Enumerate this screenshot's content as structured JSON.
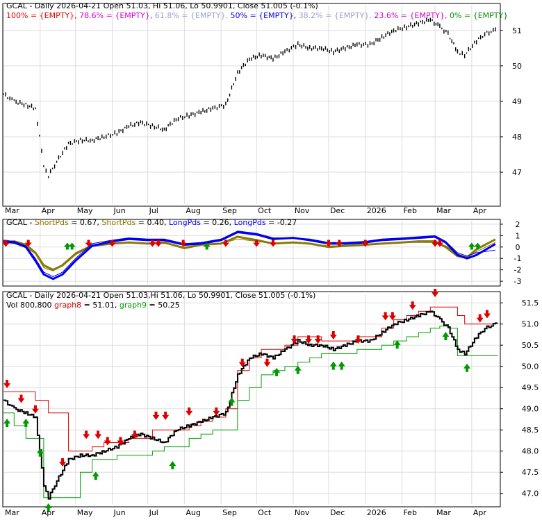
{
  "colors": {
    "fib_100": "#e00000",
    "fib_786": "#d000d0",
    "fib_618": "#9aa0c8",
    "fib_50": "#0000e0",
    "fib_382": "#9aa0c8",
    "fib_236": "#d000d0",
    "fib_0": "#009000",
    "short": "#8a7a00",
    "long": "#0000ee",
    "stop_upper": "#e00000",
    "stop_lower": "#00a000",
    "arrow_down": "#dd0000",
    "arrow_up": "#009900",
    "price": "#000000",
    "grid": "#dddddd"
  },
  "panel1": {
    "title": "GCAL - Daily 2026-04-21 Open 51.03, Hi 51.06, Lo 50.9901, Close 51.005 (-0.1%)",
    "fib": [
      {
        "label": "100% = {EMPTY}, ",
        "color_key": "fib_100"
      },
      {
        "label": "78.6% = {EMPTY}, ",
        "color_key": "fib_786"
      },
      {
        "label": "61.8% = {EMPTY}, ",
        "color_key": "fib_618"
      },
      {
        "label": "50% = {EMPTY}, ",
        "color_key": "fib_50"
      },
      {
        "label": "38.2% = {EMPTY}, ",
        "color_key": "fib_382"
      },
      {
        "label": "23.6% = {EMPTY}, ",
        "color_key": "fib_236"
      },
      {
        "label": "0% = {EMPTY}",
        "color_key": "fib_0"
      }
    ],
    "y_ticks": [
      "47",
      "48",
      "49",
      "50",
      "51"
    ],
    "x_ticks": [
      "Mar",
      "Apr",
      "May",
      "Jun",
      "Jul",
      "Aug",
      "Sep",
      "Oct",
      "Nov",
      "Dec",
      "2026",
      "Feb",
      "Mar",
      "Apr"
    ]
  },
  "panel2": {
    "title_parts": [
      {
        "text": "GCAL - ",
        "color_key": "price"
      },
      {
        "text": "ShortPds",
        "color_key": "short"
      },
      {
        "text": " = 0.67, ",
        "color_key": "price"
      },
      {
        "text": "ShortPds",
        "color_key": "short"
      },
      {
        "text": " = 0.40, ",
        "color_key": "price"
      },
      {
        "text": "LongPds",
        "color_key": "long"
      },
      {
        "text": " = 0.26, ",
        "color_key": "price"
      },
      {
        "text": "LongPds",
        "color_key": "long"
      },
      {
        "text": " = -0.27",
        "color_key": "price"
      }
    ],
    "y_ticks": [
      "2",
      "1",
      "0",
      "-1",
      "-2",
      "-3"
    ]
  },
  "panel3": {
    "title": "GCAL - Daily 2026-04-21 Open 51.03,Hi 51.06, Lo 50.9901, Close 51.005 (-0.1%)",
    "subtitle_parts": [
      {
        "text": "Vol 800,800 ",
        "color_key": "price"
      },
      {
        "text": "graph8",
        "color_key": "stop_upper"
      },
      {
        "text": " = 51.01, ",
        "color_key": "price"
      },
      {
        "text": "graph9",
        "color_key": "stop_lower"
      },
      {
        "text": " = 50.25",
        "color_key": "price"
      }
    ],
    "y_ticks": [
      "47.0",
      "47.5",
      "48.0",
      "48.5",
      "49.0",
      "49.5",
      "50.0",
      "50.5",
      "51.0",
      "51.5"
    ],
    "x_ticks": [
      "Mar",
      "Apr",
      "May",
      "Jun",
      "Jul",
      "Aug",
      "Sep",
      "Oct",
      "Nov",
      "Dec",
      "2026",
      "Feb",
      "Mar",
      "Apr"
    ]
  },
  "chart_data": [
    {
      "type": "line",
      "title": "GCAL - Daily 2026-04-21 Open 51.03, Hi 51.06, Lo 50.9901, Close 51.005 (-0.1%)",
      "ylim": [
        46.1,
        51.7
      ],
      "x": [
        "2025-03-01",
        "2025-03-10",
        "2025-03-20",
        "2025-03-28",
        "2025-04-04",
        "2025-04-08",
        "2025-04-15",
        "2025-04-25",
        "2025-05-05",
        "2025-05-15",
        "2025-05-25",
        "2025-06-05",
        "2025-06-15",
        "2025-06-25",
        "2025-07-05",
        "2025-07-15",
        "2025-07-25",
        "2025-08-05",
        "2025-08-15",
        "2025-08-25",
        "2025-09-05",
        "2025-09-15",
        "2025-09-25",
        "2025-10-05",
        "2025-10-15",
        "2025-10-25",
        "2025-11-05",
        "2025-11-15",
        "2025-11-25",
        "2025-12-05",
        "2025-12-15",
        "2025-12-25",
        "2026-01-05",
        "2026-01-15",
        "2026-01-25",
        "2026-02-05",
        "2026-02-15",
        "2026-02-25",
        "2026-03-05",
        "2026-03-12",
        "2026-03-20",
        "2026-03-26",
        "2026-04-05",
        "2026-04-12",
        "2026-04-21"
      ],
      "series": [
        {
          "values": [
            49.2,
            49.0,
            48.9,
            48.8,
            47.2,
            46.9,
            47.3,
            47.8,
            47.9,
            47.9,
            48.0,
            48.1,
            48.3,
            48.4,
            48.3,
            48.2,
            48.5,
            48.6,
            48.7,
            48.8,
            48.9,
            49.8,
            50.2,
            50.3,
            50.2,
            50.4,
            50.6,
            50.5,
            50.5,
            50.4,
            50.5,
            50.6,
            50.6,
            50.8,
            51.0,
            51.1,
            51.2,
            51.3,
            51.1,
            50.9,
            50.4,
            50.3,
            50.7,
            50.9,
            51.0
          ]
        }
      ]
    },
    {
      "type": "line",
      "title": "GCAL - ShortPds = 0.67, ShortPds = 0.40, LongPds = 0.26, LongPds = -0.27",
      "ylim": [
        -3.3,
        2.3
      ],
      "x": [
        "2025-03-01",
        "2025-03-10",
        "2025-03-20",
        "2025-03-28",
        "2025-04-04",
        "2025-04-12",
        "2025-04-20",
        "2025-05-01",
        "2025-05-15",
        "2025-06-01",
        "2025-06-15",
        "2025-07-01",
        "2025-07-15",
        "2025-08-01",
        "2025-08-15",
        "2025-09-01",
        "2025-09-15",
        "2025-10-01",
        "2025-10-15",
        "2025-11-01",
        "2025-11-15",
        "2025-12-01",
        "2025-12-15",
        "2026-01-01",
        "2026-01-15",
        "2026-02-01",
        "2026-02-15",
        "2026-03-01",
        "2026-03-10",
        "2026-03-20",
        "2026-03-28",
        "2026-04-05",
        "2026-04-21"
      ],
      "series": [
        {
          "name": "ShortPds",
          "values": [
            0.4,
            0.5,
            0.2,
            -0.5,
            -1.6,
            -2.0,
            -1.6,
            -0.6,
            0.1,
            0.3,
            0.4,
            0.3,
            0.4,
            -0.1,
            0.2,
            0.3,
            0.9,
            0.6,
            0.3,
            0.4,
            0.3,
            0.0,
            0.1,
            0.2,
            0.3,
            0.4,
            0.5,
            0.5,
            0.0,
            -0.8,
            -0.9,
            -0.2,
            0.67
          ]
        },
        {
          "name": "ShortPds",
          "values": [
            0.3,
            0.3,
            0.0,
            -0.6,
            -1.8,
            -2.1,
            -1.5,
            -0.5,
            0.2,
            0.3,
            0.4,
            0.3,
            0.3,
            0.0,
            0.2,
            0.3,
            0.7,
            0.5,
            0.3,
            0.4,
            0.3,
            0.1,
            0.1,
            0.2,
            0.3,
            0.4,
            0.4,
            0.4,
            0.1,
            -0.6,
            -0.9,
            -0.4,
            0.4
          ]
        },
        {
          "name": "LongPds",
          "values": [
            0.5,
            0.4,
            0.0,
            -1.2,
            -2.4,
            -2.8,
            -2.4,
            -1.2,
            0.1,
            0.5,
            0.7,
            0.6,
            0.6,
            0.2,
            0.3,
            0.6,
            1.3,
            1.1,
            0.7,
            0.8,
            0.6,
            0.3,
            0.3,
            0.4,
            0.6,
            0.7,
            0.8,
            0.9,
            0.4,
            -0.7,
            -1.0,
            -0.7,
            0.26
          ]
        },
        {
          "name": "LongPds",
          "values": [
            0.6,
            0.5,
            0.1,
            -1.0,
            -2.2,
            -2.6,
            -2.2,
            -1.0,
            0.3,
            0.6,
            0.8,
            0.7,
            0.7,
            0.3,
            0.4,
            0.7,
            1.4,
            1.2,
            0.8,
            0.8,
            0.7,
            0.4,
            0.4,
            0.5,
            0.7,
            0.8,
            0.9,
            1.0,
            0.5,
            -0.5,
            -0.8,
            -0.5,
            -0.27
          ]
        }
      ]
    },
    {
      "type": "line",
      "title": "GCAL - Daily 2026-04-21 Open 51.03,Hi 51.06, Lo 50.9901, Close 51.005 (-0.1%)",
      "ylim": [
        46.75,
        51.7
      ],
      "x": [
        "2025-03-01",
        "2025-03-10",
        "2025-03-20",
        "2025-03-28",
        "2025-04-04",
        "2025-04-08",
        "2025-04-15",
        "2025-04-25",
        "2025-05-05",
        "2025-05-15",
        "2025-05-25",
        "2025-06-05",
        "2025-06-15",
        "2025-06-25",
        "2025-07-05",
        "2025-07-15",
        "2025-07-25",
        "2025-08-05",
        "2025-08-15",
        "2025-08-25",
        "2025-09-05",
        "2025-09-15",
        "2025-09-25",
        "2025-10-05",
        "2025-10-15",
        "2025-10-25",
        "2025-11-05",
        "2025-11-15",
        "2025-11-25",
        "2025-12-05",
        "2025-12-15",
        "2025-12-25",
        "2026-01-05",
        "2026-01-15",
        "2026-01-25",
        "2026-02-05",
        "2026-02-15",
        "2026-02-25",
        "2026-03-05",
        "2026-03-12",
        "2026-03-20",
        "2026-03-26",
        "2026-04-05",
        "2026-04-12",
        "2026-04-21"
      ],
      "series": [
        {
          "values": [
            49.2,
            49.0,
            48.9,
            48.8,
            47.2,
            46.9,
            47.3,
            47.8,
            47.9,
            47.9,
            48.0,
            48.1,
            48.3,
            48.4,
            48.3,
            48.2,
            48.5,
            48.6,
            48.7,
            48.8,
            48.9,
            49.8,
            50.2,
            50.3,
            50.2,
            50.4,
            50.6,
            50.5,
            50.5,
            50.4,
            50.5,
            50.6,
            50.6,
            50.8,
            51.0,
            51.1,
            51.2,
            51.3,
            51.1,
            50.9,
            50.4,
            50.3,
            50.7,
            50.9,
            51.0
          ]
        },
        {
          "name": "graph8",
          "values": [
            49.4,
            49.4,
            49.4,
            49.2,
            49.2,
            48.9,
            48.9,
            48.0,
            48.0,
            48.1,
            48.2,
            48.2,
            48.3,
            48.3,
            48.5,
            48.5,
            48.5,
            48.6,
            48.7,
            48.8,
            49.0,
            49.9,
            50.2,
            50.4,
            50.4,
            50.5,
            50.7,
            50.7,
            50.6,
            50.6,
            50.6,
            50.7,
            50.7,
            50.9,
            51.1,
            51.2,
            51.3,
            51.4,
            51.4,
            51.4,
            51.2,
            51.0,
            51.0,
            51.0,
            51.01
          ]
        },
        {
          "name": "graph9",
          "values": [
            48.9,
            48.6,
            48.3,
            48.3,
            46.9,
            46.9,
            46.9,
            46.9,
            47.5,
            47.8,
            47.8,
            47.9,
            47.9,
            47.9,
            48.0,
            48.1,
            48.1,
            48.3,
            48.4,
            48.5,
            48.5,
            49.2,
            49.5,
            49.8,
            49.9,
            50.0,
            50.1,
            50.2,
            50.3,
            50.3,
            50.3,
            50.4,
            50.4,
            50.5,
            50.6,
            50.7,
            50.8,
            50.9,
            50.95,
            50.9,
            50.25,
            50.25,
            50.25,
            50.25,
            50.25
          ]
        }
      ]
    }
  ]
}
